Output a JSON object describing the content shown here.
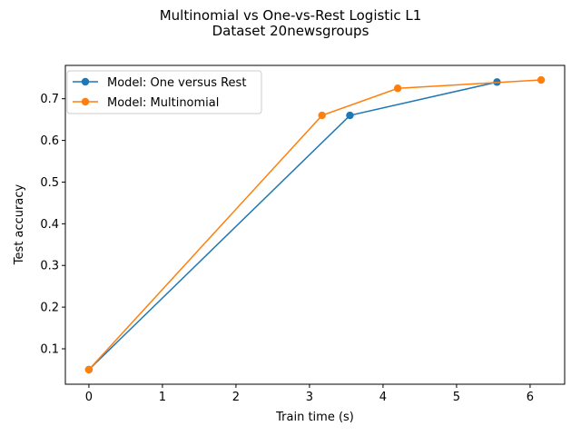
{
  "chart_data": {
    "type": "line",
    "title": "Multinomial vs One-vs-Rest Logistic L1",
    "subtitle": "Dataset 20newsgroups",
    "xlabel": "Train time (s)",
    "ylabel": "Test accuracy",
    "xlim": [
      -0.32,
      6.47
    ],
    "ylim": [
      0.015,
      0.78
    ],
    "xticks": [
      0,
      1,
      2,
      3,
      4,
      5,
      6
    ],
    "xtick_labels": [
      "0",
      "1",
      "2",
      "3",
      "4",
      "5",
      "6"
    ],
    "yticks": [
      0.1,
      0.2,
      0.3,
      0.4,
      0.5,
      0.6,
      0.7
    ],
    "ytick_labels": [
      "0.1",
      "0.2",
      "0.3",
      "0.4",
      "0.5",
      "0.6",
      "0.7"
    ],
    "grid": false,
    "legend_position": "upper-left",
    "series": [
      {
        "name": "Model: One versus Rest",
        "color": "#1f77b4",
        "marker": "circle",
        "x": [
          0.0,
          3.55,
          5.55
        ],
        "y": [
          0.05,
          0.66,
          0.74
        ]
      },
      {
        "name": "Model: Multinomial",
        "color": "#ff7f0e",
        "marker": "circle",
        "x": [
          0.0,
          3.17,
          4.2,
          6.15
        ],
        "y": [
          0.05,
          0.66,
          0.725,
          0.745
        ]
      }
    ]
  }
}
